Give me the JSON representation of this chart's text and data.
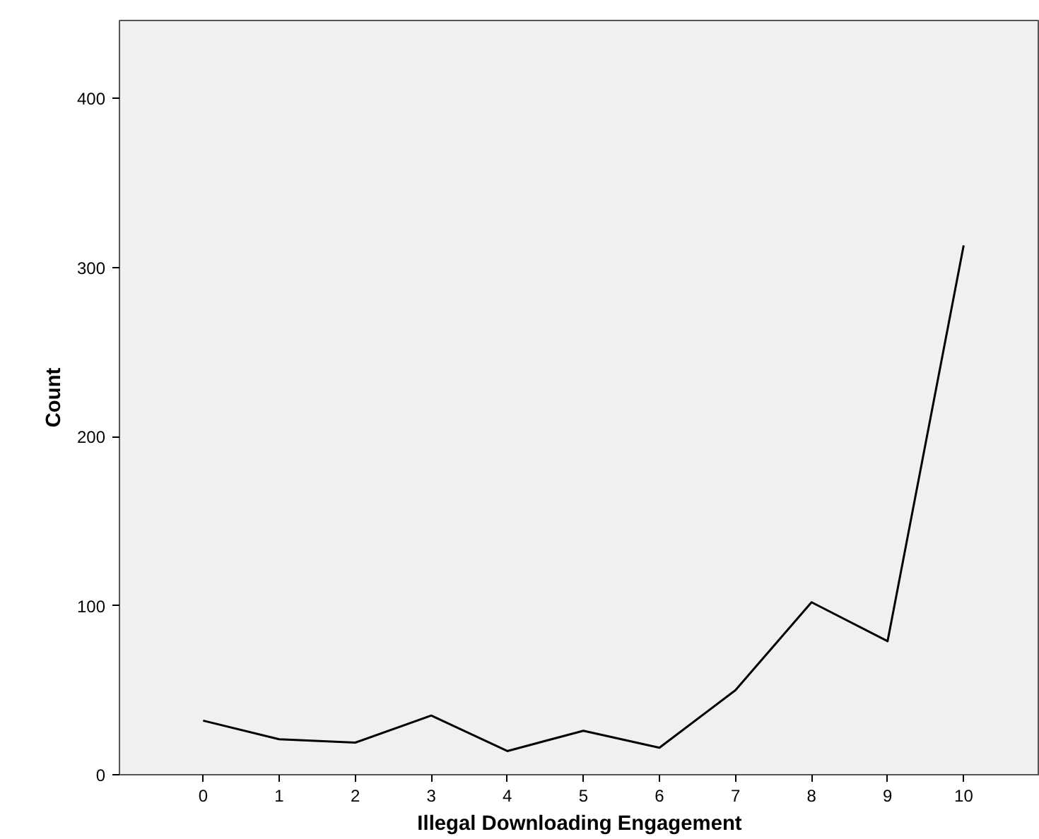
{
  "chart_data": {
    "type": "line",
    "xlabel": "Illegal Downloading Engagement",
    "ylabel": "Count",
    "x": [
      0,
      1,
      2,
      3,
      4,
      5,
      6,
      7,
      8,
      9,
      10
    ],
    "series": [
      {
        "color": "#000000",
        "values": [
          32,
          21,
          19,
          35,
          14,
          26,
          16,
          50,
          102,
          79,
          313
        ]
      }
    ],
    "xlim": [
      -1.1,
      11
    ],
    "xticks": [
      0,
      1,
      2,
      3,
      4,
      5,
      6,
      7,
      8,
      9,
      10
    ],
    "ylim": [
      0,
      446
    ],
    "yticks": [
      0,
      100,
      200,
      300,
      400
    ],
    "grid": false,
    "marker": "none",
    "line_style": "solid"
  }
}
